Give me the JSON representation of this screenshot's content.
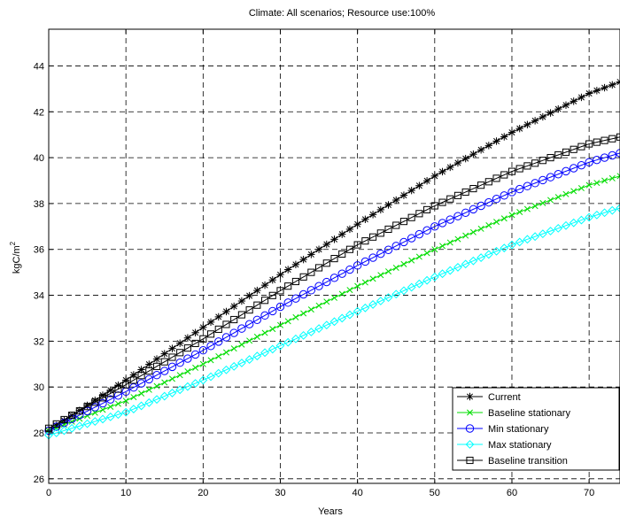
{
  "chart_data": {
    "type": "line",
    "title": "Climate: All scenarios;  Resource use:100%",
    "xlabel": "Years",
    "ylabel_base": "kgC/m",
    "ylabel_sup": "2",
    "xlim": [
      0,
      74
    ],
    "ylim": [
      25.8,
      45.6
    ],
    "xticks": [
      0,
      10,
      20,
      30,
      40,
      50,
      60,
      70
    ],
    "yticks": [
      26,
      28,
      30,
      32,
      34,
      36,
      38,
      40,
      42,
      44
    ],
    "grid": true,
    "legend_position": "bottom-right",
    "series": [
      {
        "name": "Current",
        "color": "#000000",
        "marker": "star",
        "x": [
          0,
          10,
          20,
          30,
          40,
          50,
          60,
          70,
          74
        ],
        "y": [
          28.1,
          30.3,
          32.6,
          34.9,
          37.1,
          39.2,
          41.1,
          42.8,
          43.3
        ]
      },
      {
        "name": "Baseline stationary",
        "color": "#00dd00",
        "marker": "x",
        "x": [
          0,
          10,
          20,
          30,
          40,
          50,
          60,
          70,
          74
        ],
        "y": [
          28.1,
          29.4,
          31.0,
          32.7,
          34.4,
          36.0,
          37.5,
          38.8,
          39.2
        ]
      },
      {
        "name": "Min stationary",
        "color": "#0000ff",
        "marker": "circle",
        "x": [
          0,
          10,
          20,
          30,
          40,
          50,
          60,
          70,
          74
        ],
        "y": [
          28.1,
          29.8,
          31.6,
          33.5,
          35.3,
          37.0,
          38.5,
          39.8,
          40.2
        ]
      },
      {
        "name": "Max stationary",
        "color": "#00ffff",
        "marker": "diamond",
        "x": [
          0,
          10,
          20,
          30,
          40,
          50,
          60,
          70,
          74
        ],
        "y": [
          27.9,
          28.9,
          30.3,
          31.8,
          33.3,
          34.8,
          36.2,
          37.4,
          37.8
        ]
      },
      {
        "name": "Baseline transition",
        "color": "#000000",
        "marker": "square",
        "x": [
          0,
          10,
          20,
          30,
          40,
          50,
          60,
          70,
          74
        ],
        "y": [
          28.2,
          30.1,
          32.1,
          34.2,
          36.2,
          37.9,
          39.4,
          40.6,
          40.9
        ]
      }
    ]
  }
}
